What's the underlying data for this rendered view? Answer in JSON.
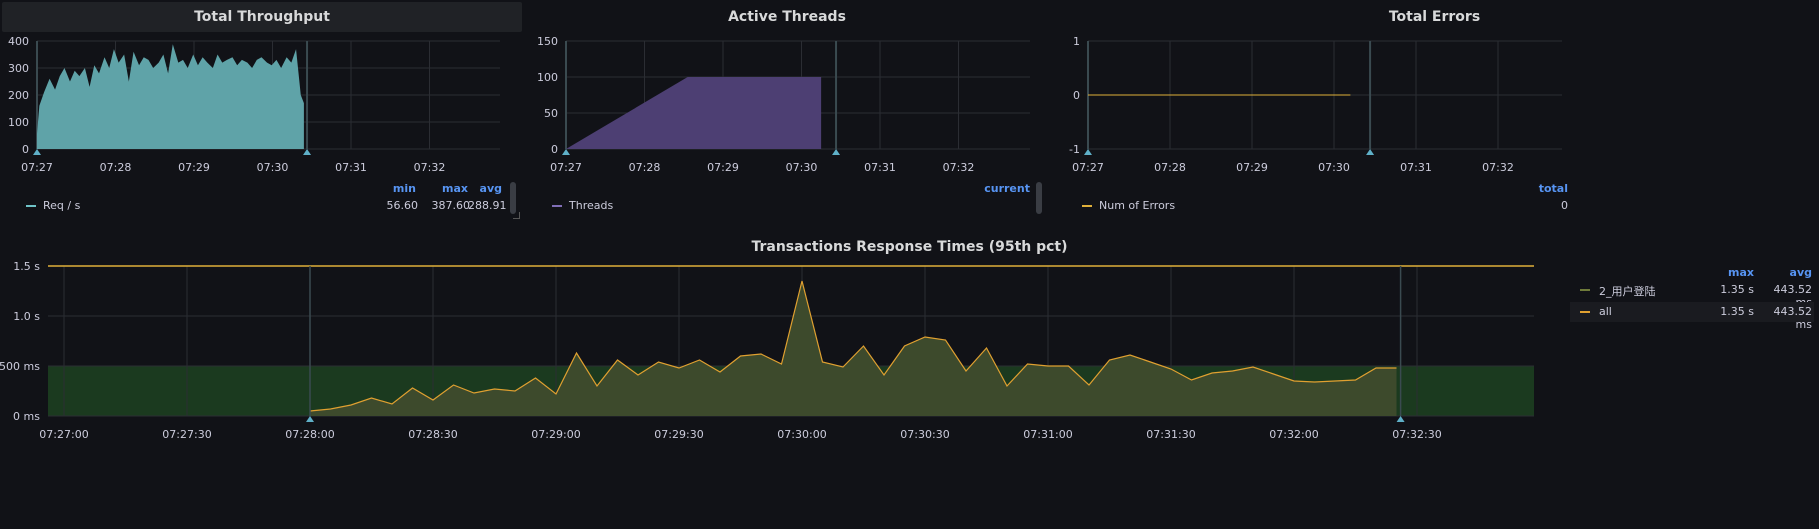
{
  "panels": {
    "throughput": {
      "title": "Total Throughput",
      "legend": {
        "headers": [
          "min",
          "max",
          "avg"
        ],
        "series": [
          {
            "name": "Req / s",
            "color": "#6fc3c8",
            "values": [
              "56.60",
              "387.60",
              "288.91"
            ]
          }
        ]
      }
    },
    "threads": {
      "title": "Active Threads",
      "legend": {
        "headers": [
          "current"
        ],
        "series": [
          {
            "name": "Threads",
            "color": "#806eb7",
            "values": [
              ""
            ]
          }
        ]
      }
    },
    "errors": {
      "title": "Total Errors",
      "legend": {
        "headers": [
          "total"
        ],
        "series": [
          {
            "name": "Num of Errors",
            "color": "#e0b03a",
            "values": [
              "0"
            ]
          }
        ]
      }
    },
    "response": {
      "title": "Transactions Response Times (95th pct)",
      "legend": {
        "headers": [
          "max",
          "avg"
        ],
        "series": [
          {
            "name": "2_用户登陆",
            "color": "#6e7a3a",
            "values": [
              "1.35 s",
              "443.52 ms"
            ]
          },
          {
            "name": "all",
            "color": "#e0a030",
            "values": [
              "1.35 s",
              "443.52 ms"
            ]
          }
        ]
      }
    }
  },
  "colors": {
    "throughput_fill": "#5fa3a8",
    "threads_fill": "#4d3f73",
    "error_line": "#e0b03a",
    "response_line": "#e0a030",
    "response_fill": "#3d4a2c",
    "threshold_fill": "#1b3a1f",
    "threshold_line": "#e0b03a",
    "annotation": "#5fb0c8"
  },
  "chart_data": [
    {
      "type": "area",
      "panel": "throughput",
      "xticks": [
        "07:27",
        "07:28",
        "07:29",
        "07:30",
        "07:31",
        "07:32"
      ],
      "ylim": [
        0,
        400
      ],
      "yticks": [
        "0",
        "100",
        "200",
        "300",
        "400"
      ],
      "x_minutes": [
        1.0,
        1.03,
        1.09,
        1.16,
        1.23,
        1.29,
        1.35,
        1.42,
        1.48,
        1.54,
        1.61,
        1.67,
        1.73,
        1.79,
        1.86,
        1.92,
        1.98,
        2.04,
        2.11,
        2.17,
        2.23,
        2.3,
        2.36,
        2.42,
        2.48,
        2.55,
        2.61,
        2.67,
        2.73,
        2.8,
        2.86,
        2.92,
        2.99,
        3.05,
        3.11,
        3.17,
        3.24,
        3.3,
        3.36,
        3.42,
        3.49,
        3.55,
        3.61,
        3.68,
        3.74,
        3.8,
        3.86,
        3.93,
        3.99,
        4.05,
        4.11,
        4.18,
        4.24,
        4.3,
        4.36,
        4.4
      ],
      "series": [
        {
          "name": "Req / s",
          "values": [
            56.6,
            160,
            210,
            260,
            220,
            270,
            300,
            250,
            290,
            270,
            300,
            230,
            310,
            280,
            340,
            300,
            370,
            320,
            350,
            250,
            360,
            310,
            340,
            330,
            300,
            320,
            350,
            280,
            388,
            320,
            330,
            300,
            350,
            310,
            340,
            320,
            300,
            350,
            320,
            330,
            340,
            310,
            330,
            320,
            300,
            330,
            340,
            320,
            310,
            330,
            300,
            340,
            320,
            370,
            200,
            170
          ]
        }
      ]
    },
    {
      "type": "area",
      "panel": "threads",
      "xticks": [
        "07:27",
        "07:28",
        "07:29",
        "07:30",
        "07:31",
        "07:32"
      ],
      "ylim": [
        0,
        150
      ],
      "yticks": [
        "0",
        "50",
        "100",
        "150"
      ],
      "x_minutes": [
        1.0,
        2.55,
        4.25,
        4.25
      ],
      "series": [
        {
          "name": "Threads",
          "values": [
            0,
            100,
            100,
            0
          ]
        }
      ]
    },
    {
      "type": "line",
      "panel": "errors",
      "xticks": [
        "07:27",
        "07:28",
        "07:29",
        "07:30",
        "07:31",
        "07:32"
      ],
      "ylim": [
        -1,
        1
      ],
      "yticks": [
        "-1",
        "0",
        "1"
      ],
      "x_minutes": [
        1.0,
        4.2
      ],
      "series": [
        {
          "name": "Num of Errors",
          "values": [
            0,
            0
          ]
        }
      ]
    },
    {
      "type": "line",
      "panel": "response",
      "xticks": [
        "07:27:00",
        "07:27:30",
        "07:28:00",
        "07:28:30",
        "07:29:00",
        "07:29:30",
        "07:30:00",
        "07:30:30",
        "07:31:00",
        "07:31:30",
        "07:32:00",
        "07:32:30"
      ],
      "ylim": [
        0,
        1.5
      ],
      "yticks": [
        "0 ms",
        "500 ms",
        "1.0 s",
        "1.5 s"
      ],
      "threshold": 0.5,
      "x_seconds": [
        60,
        65,
        70,
        75,
        80,
        85,
        90,
        95,
        100,
        105,
        110,
        115,
        120,
        125,
        130,
        135,
        140,
        145,
        150,
        155,
        160,
        165,
        170,
        175,
        180,
        185,
        190,
        195,
        200,
        205,
        210,
        215,
        220,
        225,
        230,
        235,
        240,
        245,
        250,
        255,
        260,
        265,
        270,
        275,
        280,
        285,
        290,
        295,
        300,
        305,
        310,
        315,
        320,
        325
      ],
      "series": [
        {
          "name": "all",
          "values": [
            0.05,
            0.07,
            0.11,
            0.18,
            0.12,
            0.28,
            0.16,
            0.31,
            0.23,
            0.27,
            0.25,
            0.38,
            0.22,
            0.63,
            0.3,
            0.56,
            0.41,
            0.54,
            0.48,
            0.56,
            0.44,
            0.6,
            0.62,
            0.52,
            1.35,
            0.54,
            0.49,
            0.7,
            0.41,
            0.7,
            0.79,
            0.76,
            0.45,
            0.68,
            0.3,
            0.52,
            0.5,
            0.5,
            0.31,
            0.56,
            0.61,
            0.54,
            0.47,
            0.36,
            0.43,
            0.45,
            0.49,
            0.42,
            0.35,
            0.34,
            0.35,
            0.36,
            0.48,
            0.48
          ]
        }
      ]
    }
  ]
}
